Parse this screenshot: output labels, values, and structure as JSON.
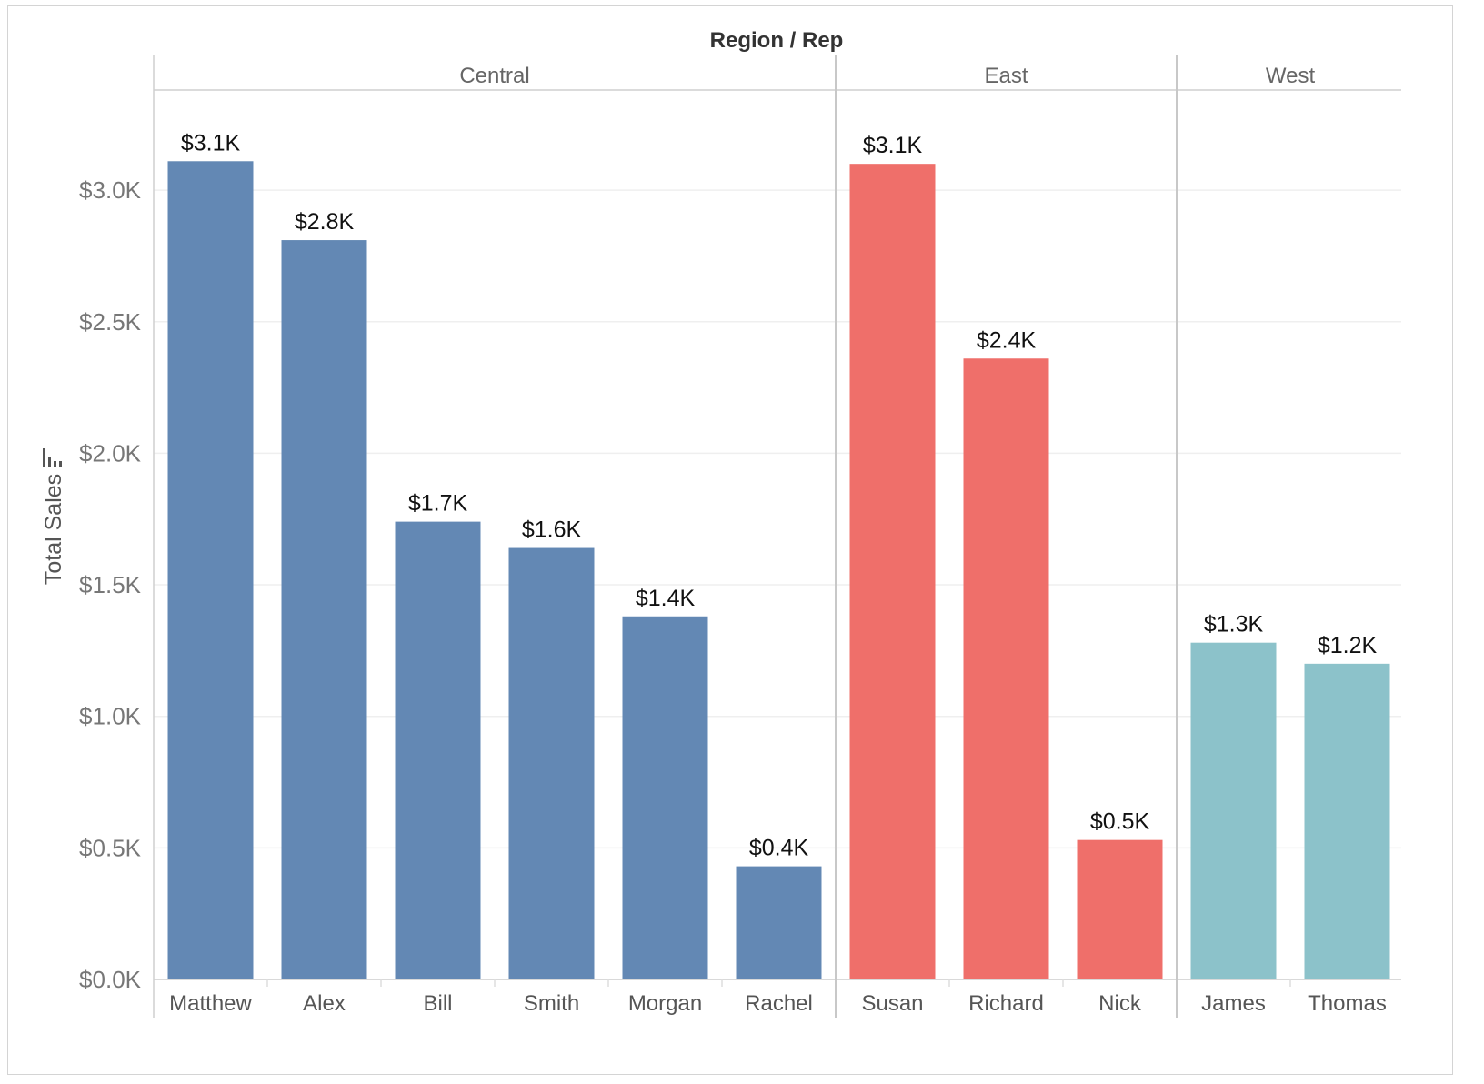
{
  "chart_data": {
    "type": "bar",
    "title": "Region / Rep",
    "ylabel": "Total Sales",
    "xlabel": "",
    "ylim": [
      0,
      3.35
    ],
    "y_unit": "thousands of dollars",
    "y_ticks": [
      {
        "value": 0.0,
        "label": "$0.0K"
      },
      {
        "value": 0.5,
        "label": "$0.5K"
      },
      {
        "value": 1.0,
        "label": "$1.0K"
      },
      {
        "value": 1.5,
        "label": "$1.5K"
      },
      {
        "value": 2.0,
        "label": "$2.0K"
      },
      {
        "value": 2.5,
        "label": "$2.5K"
      },
      {
        "value": 3.0,
        "label": "$3.0K"
      }
    ],
    "grid": true,
    "legend": "none",
    "groups": [
      {
        "name": "Central",
        "color": "#6388b4",
        "bars": [
          {
            "category": "Matthew",
            "value": 3.11,
            "label": "$3.1K"
          },
          {
            "category": "Alex",
            "value": 2.81,
            "label": "$2.8K"
          },
          {
            "category": "Bill",
            "value": 1.74,
            "label": "$1.7K"
          },
          {
            "category": "Smith",
            "value": 1.64,
            "label": "$1.6K"
          },
          {
            "category": "Morgan",
            "value": 1.38,
            "label": "$1.4K"
          },
          {
            "category": "Rachel",
            "value": 0.43,
            "label": "$0.4K"
          }
        ]
      },
      {
        "name": "East",
        "color": "#ef6f6a",
        "bars": [
          {
            "category": "Susan",
            "value": 3.1,
            "label": "$3.1K"
          },
          {
            "category": "Richard",
            "value": 2.36,
            "label": "$2.4K"
          },
          {
            "category": "Nick",
            "value": 0.53,
            "label": "$0.5K"
          }
        ]
      },
      {
        "name": "West",
        "color": "#8cc2ca",
        "bars": [
          {
            "category": "James",
            "value": 1.28,
            "label": "$1.3K"
          },
          {
            "category": "Thomas",
            "value": 1.2,
            "label": "$1.2K"
          }
        ]
      }
    ]
  }
}
